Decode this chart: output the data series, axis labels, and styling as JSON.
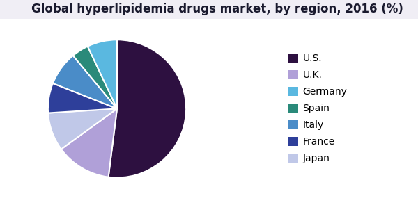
{
  "title": "Global hyperlipidemia drugs market, by region, 2016 (%)",
  "labels": [
    "U.S.",
    "U.K.",
    "Japan",
    "France",
    "Italy",
    "Spain",
    "Germany"
  ],
  "values": [
    52,
    13,
    9,
    7,
    8,
    4,
    7
  ],
  "colors": [
    "#2d1040",
    "#b0a0d8",
    "#c0c8e8",
    "#2e3f9a",
    "#4a8cc8",
    "#2a8a7a",
    "#5ab8e0"
  ],
  "legend_labels": [
    "U.S.",
    "U.K.",
    "Germany",
    "Spain",
    "Italy",
    "France",
    "Japan"
  ],
  "legend_colors": [
    "#2d1040",
    "#b0a0d8",
    "#5ab8e0",
    "#2a8a7a",
    "#4a8cc8",
    "#2e3f9a",
    "#c0c8e8"
  ],
  "title_fontsize": 12,
  "legend_fontsize": 10,
  "background_color": "#ffffff",
  "header_bar_color": "#9b59b6",
  "header_line_color": "#2e4b9e",
  "triangle_dark": "#4a1a6a",
  "triangle_light": "#7b4fa0"
}
